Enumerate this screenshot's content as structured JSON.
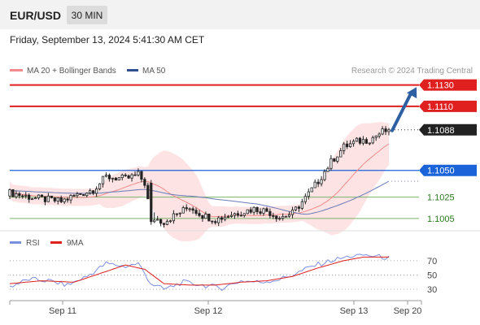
{
  "header": {
    "symbol": "EUR/USD",
    "timeframe": "30 MIN",
    "datetime": "Friday, September 13, 2024 5:41:30 AM CET"
  },
  "legend": {
    "ma20_label": "MA 20 + Bollinger Bands",
    "ma50_label": "MA 50",
    "attribution": "Research © 2024 Trading Central"
  },
  "colors": {
    "candle": "#222222",
    "ma20": "#f28b8b",
    "bands_fill": "#fde0e0",
    "ma50": "#6a7bb8",
    "resistance": "#e01f1f",
    "support": "#1a63d8",
    "target": "#7bb36a",
    "arrow": "#2f5fa3",
    "rsi": "#7b8fe0",
    "rsi_ma": "#e01f1f",
    "current_label_bg": "#222222"
  },
  "chart_data": [
    {
      "type": "candlestick",
      "title": "EUR/USD",
      "timeframe": "30 MIN",
      "x_ticks": [
        "Sep 11",
        "Sep 12",
        "Sep 13",
        "Sep 20"
      ],
      "ylim": [
        1.0995,
        1.1135
      ],
      "current_price": 1.1088,
      "levels": [
        {
          "value": 1.113,
          "label": "1.1130",
          "kind": "resistance"
        },
        {
          "value": 1.111,
          "label": "1.1110",
          "kind": "resistance"
        },
        {
          "value": 1.105,
          "label": "1.1050",
          "kind": "pivot"
        },
        {
          "value": 1.1025,
          "label": "1.1025",
          "kind": "support"
        },
        {
          "value": 1.1005,
          "label": "1.1005",
          "kind": "support"
        }
      ],
      "current_label": "1.1088",
      "arrow": {
        "from": 1.1088,
        "to": 1.1128,
        "direction": "up"
      },
      "close_key": [
        [
          0,
          1.1029
        ],
        [
          8,
          1.1024
        ],
        [
          16,
          1.1021
        ],
        [
          20,
          1.1026
        ],
        [
          26,
          1.1032
        ],
        [
          30,
          1.1044
        ],
        [
          36,
          1.1042
        ],
        [
          40,
          1.1046
        ],
        [
          42,
          1.1038
        ],
        [
          44,
          1.1006
        ],
        [
          48,
          1.1002
        ],
        [
          52,
          1.1009
        ],
        [
          56,
          1.1016
        ],
        [
          60,
          1.1008
        ],
        [
          64,
          1.1004
        ],
        [
          68,
          1.1008
        ],
        [
          72,
          1.1011
        ],
        [
          76,
          1.1014
        ],
        [
          80,
          1.1012
        ],
        [
          84,
          1.1006
        ],
        [
          88,
          1.101
        ],
        [
          92,
          1.1024
        ],
        [
          96,
          1.104
        ],
        [
          100,
          1.1058
        ],
        [
          104,
          1.1072
        ],
        [
          108,
          1.1077
        ],
        [
          112,
          1.1079
        ],
        [
          116,
          1.1086
        ],
        [
          118,
          1.1088
        ]
      ],
      "rsi": {
        "legend": [
          "RSI",
          "9MA"
        ],
        "ticks": [
          70,
          50,
          30
        ],
        "ylim": [
          20,
          80
        ],
        "rsi_key": [
          [
            0,
            34
          ],
          [
            6,
            44
          ],
          [
            12,
            42
          ],
          [
            18,
            36
          ],
          [
            24,
            48
          ],
          [
            30,
            66
          ],
          [
            36,
            62
          ],
          [
            40,
            66
          ],
          [
            44,
            38
          ],
          [
            48,
            30
          ],
          [
            54,
            40
          ],
          [
            60,
            36
          ],
          [
            66,
            32
          ],
          [
            72,
            42
          ],
          [
            78,
            40
          ],
          [
            84,
            44
          ],
          [
            88,
            50
          ],
          [
            94,
            62
          ],
          [
            100,
            70
          ],
          [
            106,
            76
          ],
          [
            110,
            78
          ],
          [
            114,
            76
          ],
          [
            118,
            74
          ]
        ],
        "ma_key": [
          [
            0,
            38
          ],
          [
            10,
            42
          ],
          [
            20,
            40
          ],
          [
            28,
            52
          ],
          [
            36,
            64
          ],
          [
            42,
            58
          ],
          [
            48,
            38
          ],
          [
            56,
            36
          ],
          [
            64,
            36
          ],
          [
            72,
            40
          ],
          [
            80,
            42
          ],
          [
            88,
            48
          ],
          [
            96,
            60
          ],
          [
            104,
            70
          ],
          [
            110,
            75
          ],
          [
            118,
            75
          ]
        ]
      }
    }
  ]
}
